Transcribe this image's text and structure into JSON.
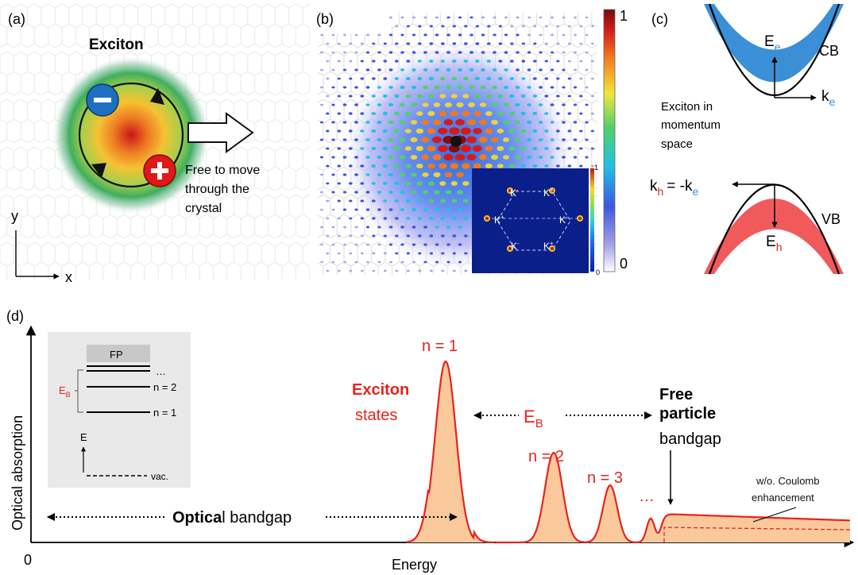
{
  "panel_a": {
    "label": "(a)",
    "title": "Exciton",
    "electron_sign": "−",
    "hole_sign": "+",
    "free_move_lines": [
      "Free to move",
      "through the",
      "crystal"
    ],
    "axis_y": "y",
    "axis_x": "x"
  },
  "panel_b": {
    "label": "(b)",
    "colorbar_max": "1",
    "colorbar_min": "0",
    "inset": {
      "colorbar_max": "1",
      "colorbar_min": "0",
      "valleys": [
        "K",
        "K",
        "K",
        "K",
        "K",
        "K"
      ],
      "valley_signs": [
        "-",
        "+",
        "+",
        "-",
        "-",
        "+"
      ]
    }
  },
  "panel_c": {
    "label": "(c)",
    "cb": "CB",
    "vb": "VB",
    "Ee": "E",
    "Ee_sub": "e",
    "ke": "k",
    "ke_sub": "e",
    "Eh": "E",
    "Eh_sub": "h",
    "kh": "k",
    "kh_sub": "h",
    "kh_rhs": "= -k",
    "kh_rhs_sub": "e",
    "caption_lines": [
      "Exciton in",
      "momentum",
      "space"
    ],
    "colors": {
      "cb_fill": "#3a8fd6",
      "vb_fill": "#f05a5a"
    }
  },
  "panel_d": {
    "label": "(d)",
    "ylabel": "Optical absorption",
    "xlabel": "Energy",
    "origin": "0",
    "n1": "n = 1",
    "n2": "n = 2",
    "n3": "n = 3",
    "ellipsis": "…",
    "exciton_word": "Exciton",
    "states_word": "states",
    "eb": "E",
    "eb_sub": "B",
    "free_word": "Free",
    "particle_word": "particle",
    "bandgap_word": "bandgap",
    "optical_bold": "Optica",
    "optical_rest": "l bandgap",
    "no_coulomb_lines": [
      "w/o. Coulomb",
      "enhancement"
    ],
    "inset": {
      "fp": "FP",
      "dots": "…",
      "n2": "n = 2",
      "n1": "n = 1",
      "eb": "E",
      "eb_sub": "B",
      "e": "E",
      "vac": "vac."
    },
    "colors": {
      "curve": "#e8231d",
      "fill": "#f9c89b",
      "red_text": "#e8231d"
    }
  }
}
